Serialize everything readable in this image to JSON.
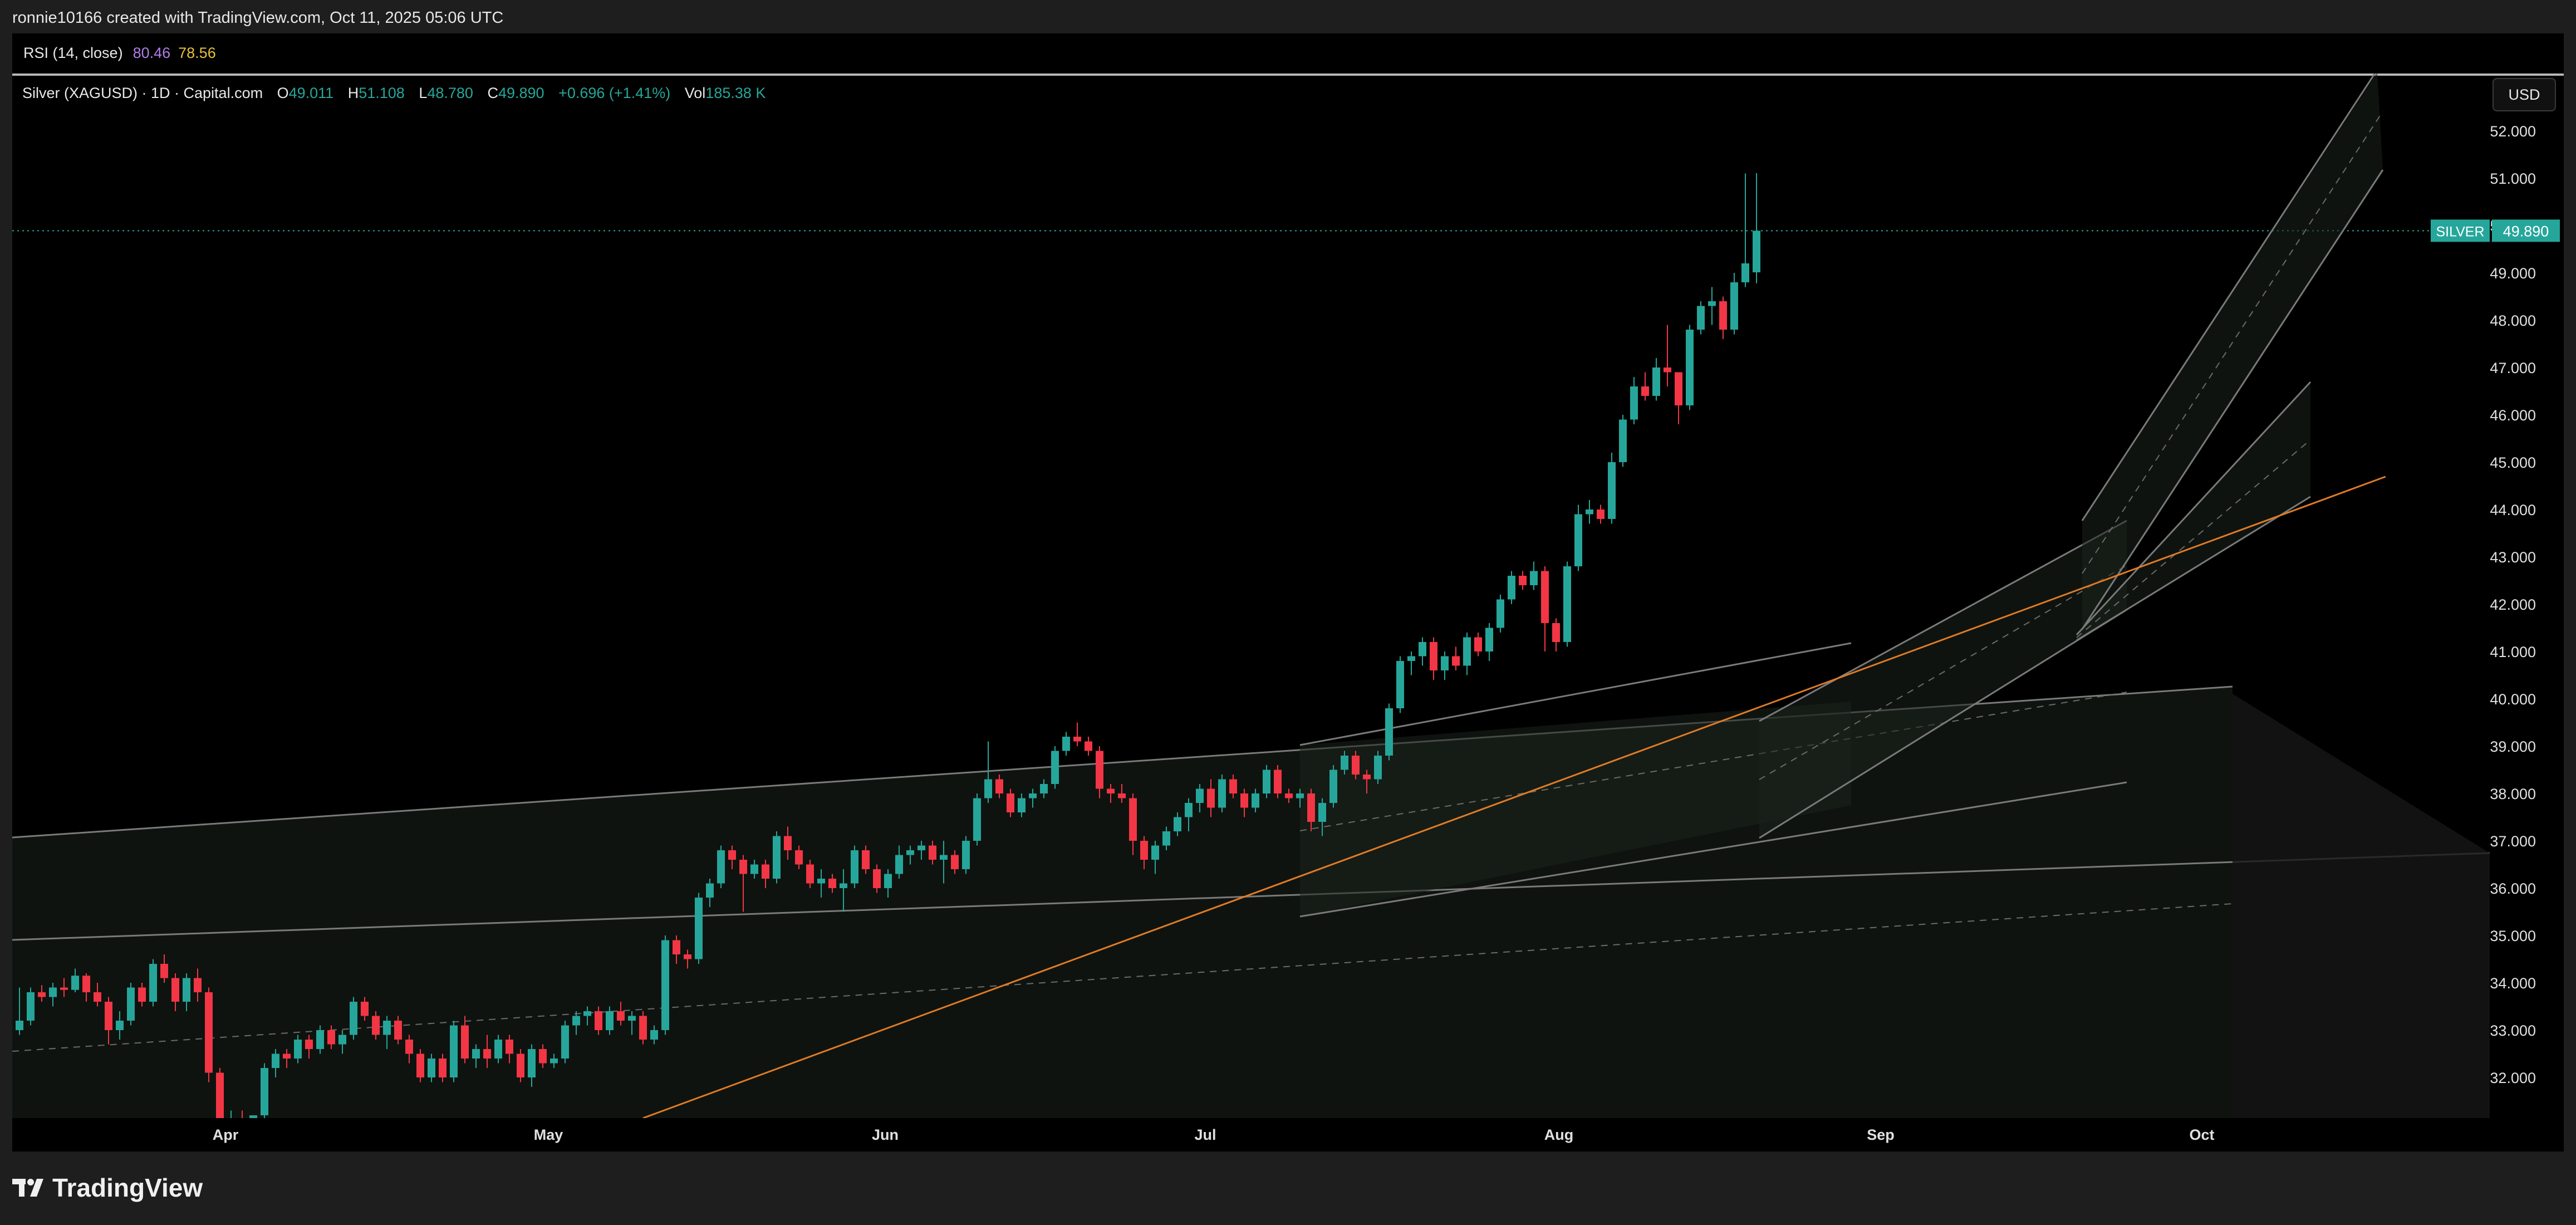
{
  "header": {
    "creator_line": "ronnie10166 created with TradingView.com, Oct 11, 2025 05:06 UTC"
  },
  "rsi": {
    "label": "RSI (14, close)",
    "value1": "80.46",
    "value2": "78.56"
  },
  "legend": {
    "symbol": "Silver (XAGUSD) · 1D · Capital.com",
    "open_label": "O",
    "open": "49.011",
    "high_label": "H",
    "high": "51.108",
    "low_label": "L",
    "low": "48.780",
    "close_label": "C",
    "close": "49.890",
    "change": "+0.696 (+1.41%)",
    "vol_label": "Vol",
    "vol": "185.38 K"
  },
  "currency_button": "USD",
  "price_tag": {
    "name": "SILVER",
    "value": "49.890"
  },
  "brand": "TradingView",
  "colors": {
    "up": "#26a69a",
    "down": "#f23645",
    "background": "#000000",
    "trendline": "#e07b25"
  },
  "chart_data": {
    "type": "candlestick",
    "symbol": "Silver (XAGUSD)",
    "timeframe": "1D",
    "y_ticks": [
      "32.000",
      "33.000",
      "34.000",
      "35.000",
      "36.000",
      "37.000",
      "38.000",
      "39.000",
      "40.000",
      "41.000",
      "42.000",
      "43.000",
      "44.000",
      "45.000",
      "46.000",
      "47.000",
      "48.000",
      "49.000",
      "50.000",
      "51.000",
      "52.000"
    ],
    "x_labels": [
      "Apr",
      "May",
      "Jun",
      "Jul",
      "Aug",
      "Sep",
      "Oct"
    ],
    "ylim": [
      31.35,
      53.5
    ],
    "candles": [
      [
        33.0,
        33.9,
        32.9,
        33.2
      ],
      [
        33.2,
        33.9,
        33.1,
        33.8
      ],
      [
        33.8,
        33.95,
        33.6,
        33.7
      ],
      [
        33.7,
        34.0,
        33.5,
        33.9
      ],
      [
        33.9,
        34.1,
        33.7,
        33.85
      ],
      [
        33.85,
        34.3,
        33.8,
        34.15
      ],
      [
        34.15,
        34.2,
        33.6,
        33.8
      ],
      [
        33.8,
        34.0,
        33.5,
        33.6
      ],
      [
        33.6,
        33.7,
        32.7,
        33.0
      ],
      [
        33.0,
        33.4,
        32.8,
        33.2
      ],
      [
        33.2,
        34.0,
        33.1,
        33.9
      ],
      [
        33.9,
        34.0,
        33.5,
        33.6
      ],
      [
        33.6,
        34.5,
        33.5,
        34.4
      ],
      [
        34.4,
        34.6,
        34.0,
        34.1
      ],
      [
        34.1,
        34.2,
        33.4,
        33.6
      ],
      [
        33.6,
        34.2,
        33.4,
        34.1
      ],
      [
        34.1,
        34.3,
        33.6,
        33.8
      ],
      [
        33.8,
        33.9,
        31.9,
        32.1
      ],
      [
        32.1,
        32.2,
        30.9,
        31.0
      ],
      [
        31.0,
        31.3,
        30.4,
        31.1
      ],
      [
        31.1,
        31.3,
        30.8,
        31.0
      ],
      [
        31.0,
        31.2,
        30.7,
        31.2
      ],
      [
        31.2,
        32.3,
        31.1,
        32.2
      ],
      [
        32.2,
        32.6,
        32.0,
        32.5
      ],
      [
        32.5,
        32.6,
        32.2,
        32.4
      ],
      [
        32.4,
        32.9,
        32.3,
        32.8
      ],
      [
        32.8,
        32.9,
        32.4,
        32.6
      ],
      [
        32.6,
        33.1,
        32.5,
        33.0
      ],
      [
        33.0,
        33.1,
        32.6,
        32.7
      ],
      [
        32.7,
        33.0,
        32.5,
        32.9
      ],
      [
        32.9,
        33.7,
        32.8,
        33.6
      ],
      [
        33.6,
        33.7,
        33.2,
        33.3
      ],
      [
        33.3,
        33.4,
        32.8,
        32.9
      ],
      [
        32.9,
        33.3,
        32.6,
        33.2
      ],
      [
        33.2,
        33.3,
        32.7,
        32.8
      ],
      [
        32.8,
        32.9,
        32.3,
        32.5
      ],
      [
        32.5,
        32.6,
        31.9,
        32.0
      ],
      [
        32.0,
        32.5,
        31.9,
        32.4
      ],
      [
        32.4,
        32.5,
        31.9,
        32.0
      ],
      [
        32.0,
        33.2,
        31.9,
        33.1
      ],
      [
        33.1,
        33.3,
        32.3,
        32.4
      ],
      [
        32.4,
        32.7,
        32.2,
        32.6
      ],
      [
        32.6,
        32.9,
        32.2,
        32.4
      ],
      [
        32.4,
        32.9,
        32.3,
        32.8
      ],
      [
        32.8,
        32.9,
        32.3,
        32.5
      ],
      [
        32.5,
        32.6,
        31.9,
        32.0
      ],
      [
        32.0,
        32.7,
        31.8,
        32.6
      ],
      [
        32.6,
        32.7,
        32.2,
        32.3
      ],
      [
        32.3,
        32.5,
        32.2,
        32.4
      ],
      [
        32.4,
        33.2,
        32.3,
        33.1
      ],
      [
        33.1,
        33.4,
        32.9,
        33.3
      ],
      [
        33.3,
        33.5,
        33.1,
        33.4
      ],
      [
        33.4,
        33.5,
        32.9,
        33.0
      ],
      [
        33.0,
        33.5,
        32.9,
        33.4
      ],
      [
        33.4,
        33.6,
        33.1,
        33.2
      ],
      [
        33.2,
        33.4,
        32.9,
        33.3
      ],
      [
        33.3,
        33.4,
        32.7,
        32.8
      ],
      [
        32.8,
        33.1,
        32.7,
        33.0
      ],
      [
        33.0,
        35.0,
        32.9,
        34.9
      ],
      [
        34.9,
        35.0,
        34.4,
        34.6
      ],
      [
        34.6,
        34.7,
        34.3,
        34.5
      ],
      [
        34.5,
        35.9,
        34.4,
        35.8
      ],
      [
        35.8,
        36.2,
        35.6,
        36.1
      ],
      [
        36.1,
        36.9,
        36.0,
        36.8
      ],
      [
        36.8,
        36.9,
        36.4,
        36.6
      ],
      [
        36.6,
        36.7,
        35.5,
        36.3
      ],
      [
        36.3,
        36.6,
        36.2,
        36.5
      ],
      [
        36.5,
        36.6,
        36.0,
        36.2
      ],
      [
        36.2,
        37.2,
        36.1,
        37.1
      ],
      [
        37.1,
        37.3,
        36.6,
        36.8
      ],
      [
        36.8,
        36.9,
        36.4,
        36.5
      ],
      [
        36.5,
        36.6,
        36.0,
        36.1
      ],
      [
        36.1,
        36.4,
        35.8,
        36.2
      ],
      [
        36.2,
        36.3,
        35.9,
        36.0
      ],
      [
        36.0,
        36.4,
        35.5,
        36.1
      ],
      [
        36.1,
        36.9,
        36.0,
        36.8
      ],
      [
        36.8,
        36.9,
        36.3,
        36.4
      ],
      [
        36.4,
        36.5,
        35.9,
        36.0
      ],
      [
        36.0,
        36.4,
        35.8,
        36.3
      ],
      [
        36.3,
        36.9,
        36.2,
        36.7
      ],
      [
        36.7,
        36.9,
        36.5,
        36.8
      ],
      [
        36.8,
        37.0,
        36.6,
        36.9
      ],
      [
        36.9,
        37.0,
        36.5,
        36.6
      ],
      [
        36.6,
        37.0,
        36.1,
        36.7
      ],
      [
        36.7,
        36.8,
        36.3,
        36.4
      ],
      [
        36.4,
        37.1,
        36.3,
        37.0
      ],
      [
        37.0,
        38.0,
        36.9,
        37.9
      ],
      [
        37.9,
        39.1,
        37.8,
        38.3
      ],
      [
        38.3,
        38.4,
        37.9,
        38.0
      ],
      [
        38.0,
        38.1,
        37.5,
        37.6
      ],
      [
        37.6,
        38.0,
        37.5,
        37.9
      ],
      [
        37.9,
        38.1,
        37.7,
        38.0
      ],
      [
        38.0,
        38.3,
        37.9,
        38.2
      ],
      [
        38.2,
        39.0,
        38.1,
        38.9
      ],
      [
        38.9,
        39.3,
        38.8,
        39.2
      ],
      [
        39.2,
        39.5,
        39.0,
        39.1
      ],
      [
        39.1,
        39.2,
        38.8,
        38.9
      ],
      [
        38.9,
        39.0,
        37.9,
        38.1
      ],
      [
        38.1,
        38.2,
        37.8,
        38.0
      ],
      [
        38.0,
        38.2,
        37.8,
        37.9
      ],
      [
        37.9,
        38.0,
        36.7,
        37.0
      ],
      [
        37.0,
        37.1,
        36.4,
        36.6
      ],
      [
        36.6,
        37.0,
        36.3,
        36.9
      ],
      [
        36.9,
        37.3,
        36.8,
        37.2
      ],
      [
        37.2,
        37.6,
        37.1,
        37.5
      ],
      [
        37.5,
        37.9,
        37.2,
        37.8
      ],
      [
        37.8,
        38.2,
        37.6,
        38.1
      ],
      [
        38.1,
        38.3,
        37.5,
        37.7
      ],
      [
        37.7,
        38.4,
        37.6,
        38.3
      ],
      [
        38.3,
        38.4,
        37.9,
        38.0
      ],
      [
        38.0,
        38.1,
        37.5,
        37.7
      ],
      [
        37.7,
        38.1,
        37.6,
        38.0
      ],
      [
        38.0,
        38.6,
        37.9,
        38.5
      ],
      [
        38.5,
        38.6,
        37.9,
        38.0
      ],
      [
        38.0,
        38.1,
        37.8,
        37.9
      ],
      [
        37.9,
        38.1,
        37.7,
        38.0
      ],
      [
        38.0,
        38.1,
        37.2,
        37.4
      ],
      [
        37.4,
        37.9,
        37.1,
        37.8
      ],
      [
        37.8,
        38.6,
        37.7,
        38.5
      ],
      [
        38.5,
        38.9,
        38.4,
        38.8
      ],
      [
        38.8,
        38.9,
        38.3,
        38.4
      ],
      [
        38.4,
        38.5,
        38.0,
        38.3
      ],
      [
        38.3,
        38.9,
        38.2,
        38.8
      ],
      [
        38.8,
        39.9,
        38.7,
        39.8
      ],
      [
        39.8,
        40.9,
        39.7,
        40.8
      ],
      [
        40.8,
        41.0,
        40.5,
        40.9
      ],
      [
        40.9,
        41.3,
        40.7,
        41.2
      ],
      [
        41.2,
        41.3,
        40.4,
        40.6
      ],
      [
        40.6,
        41.0,
        40.4,
        40.9
      ],
      [
        40.9,
        41.1,
        40.6,
        40.7
      ],
      [
        40.7,
        41.4,
        40.5,
        41.3
      ],
      [
        41.3,
        41.4,
        40.9,
        41.0
      ],
      [
        41.0,
        41.6,
        40.8,
        41.5
      ],
      [
        41.5,
        42.2,
        41.4,
        42.1
      ],
      [
        42.1,
        42.7,
        42.0,
        42.6
      ],
      [
        42.6,
        42.7,
        42.3,
        42.4
      ],
      [
        42.4,
        42.9,
        42.3,
        42.7
      ],
      [
        42.7,
        42.8,
        41.0,
        41.6
      ],
      [
        41.6,
        41.7,
        41.0,
        41.2
      ],
      [
        41.2,
        42.9,
        41.1,
        42.8
      ],
      [
        42.8,
        44.1,
        42.7,
        43.9
      ],
      [
        43.9,
        44.2,
        43.7,
        44.0
      ],
      [
        44.0,
        44.1,
        43.7,
        43.8
      ],
      [
        43.8,
        45.2,
        43.7,
        45.0
      ],
      [
        45.0,
        46.0,
        44.9,
        45.9
      ],
      [
        45.9,
        46.8,
        45.8,
        46.6
      ],
      [
        46.6,
        46.9,
        46.3,
        46.4
      ],
      [
        46.4,
        47.2,
        46.3,
        47.0
      ],
      [
        47.0,
        47.9,
        46.6,
        46.9
      ],
      [
        46.9,
        46.9,
        45.8,
        46.2
      ],
      [
        46.2,
        47.9,
        46.1,
        47.8
      ],
      [
        47.8,
        48.4,
        47.7,
        48.3
      ],
      [
        48.3,
        48.7,
        47.9,
        48.4
      ],
      [
        48.4,
        48.5,
        47.6,
        47.8
      ],
      [
        47.8,
        49.0,
        47.7,
        48.8
      ],
      [
        48.8,
        51.1,
        48.7,
        49.2
      ],
      [
        49.011,
        51.108,
        48.78,
        49.89
      ]
    ]
  }
}
